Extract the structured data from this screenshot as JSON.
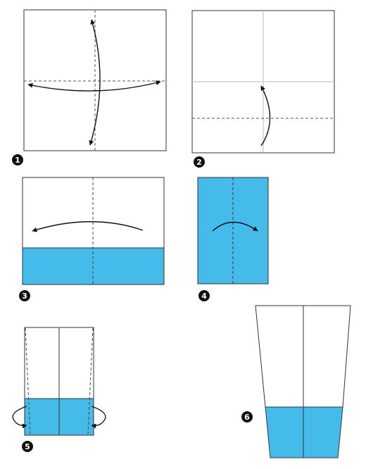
{
  "colors": {
    "paper": "#ffffff",
    "paper_back": "#45bbe9",
    "edge": "#333333",
    "crease": "#bbbbbb",
    "arrow": "#111111",
    "badge": "#111111"
  },
  "icons": [
    "mountain-valley-fold-arrow",
    "flip-over-arrow"
  ],
  "steps": [
    {
      "number": "1"
    },
    {
      "number": "2"
    },
    {
      "number": "3"
    },
    {
      "number": "4"
    },
    {
      "number": "5"
    },
    {
      "number": "6"
    }
  ]
}
